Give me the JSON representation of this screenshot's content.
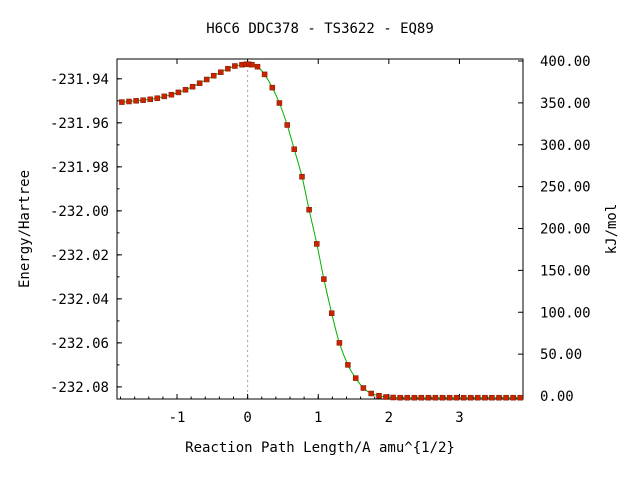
{
  "chart_data": {
    "type": "line",
    "title": "H6C6   DDC378 - TS3622 - EQ89",
    "xlabel": "Reaction Path Length/A amu^{1/2}",
    "ylabel_left": "Energy/Hartree",
    "ylabel_right": "kJ/mol",
    "xlim": [
      -1.85,
      3.9
    ],
    "ylim_left": [
      -232.0855,
      -231.931
    ],
    "ylim_right": [
      0,
      400
    ],
    "x_ticks": [
      -1,
      0,
      1,
      2,
      3
    ],
    "x_tick_labels": [
      "-1",
      "0",
      "1",
      "2",
      "3"
    ],
    "y_left_ticks": [
      -231.94,
      -231.96,
      -231.98,
      -232.0,
      -232.02,
      -232.04,
      -232.06,
      -232.08
    ],
    "y_left_tick_labels": [
      "-231.94",
      "-231.96",
      "-231.98",
      "-232.00",
      "-232.02",
      "-232.04",
      "-232.06",
      "-232.08"
    ],
    "y_right_ticks": [
      400,
      350,
      300,
      250,
      200,
      150,
      100,
      50,
      0
    ],
    "y_right_tick_labels": [
      "400.00",
      "350.00",
      "300.00",
      "250.00",
      "200.00",
      "150.00",
      "100.00",
      "50.00",
      "0.00"
    ],
    "ts_marker_x": 0,
    "grid": false,
    "series": [
      {
        "color": "#00b000",
        "marker_color": "#cc2200",
        "x": [
          -1.78,
          -1.68,
          -1.58,
          -1.48,
          -1.38,
          -1.28,
          -1.18,
          -1.08,
          -0.98,
          -0.88,
          -0.78,
          -0.68,
          -0.58,
          -0.48,
          -0.38,
          -0.28,
          -0.18,
          -0.08,
          -0.02,
          0.02,
          0.06,
          0.14,
          0.24,
          0.35,
          0.45,
          0.56,
          0.66,
          0.77,
          0.87,
          0.98,
          1.08,
          1.19,
          1.3,
          1.42,
          1.53,
          1.64,
          1.75,
          1.86,
          1.96,
          2.06,
          2.16,
          2.26,
          2.36,
          2.46,
          2.56,
          2.66,
          2.76,
          2.86,
          2.96,
          3.06,
          3.16,
          3.26,
          3.36,
          3.46,
          3.56,
          3.66,
          3.76,
          3.86
        ],
        "y": [
          -231.9506,
          -231.9503,
          -231.95,
          -231.9497,
          -231.9493,
          -231.9488,
          -231.948,
          -231.9472,
          -231.9462,
          -231.945,
          -231.9436,
          -231.942,
          -231.9403,
          -231.9386,
          -231.937,
          -231.9354,
          -231.9342,
          -231.9336,
          -231.9334,
          -231.9334,
          -231.9336,
          -231.9345,
          -231.938,
          -231.944,
          -231.951,
          -231.961,
          -231.972,
          -231.9845,
          -231.9995,
          -232.015,
          -232.031,
          -232.0465,
          -232.06,
          -232.07,
          -232.076,
          -232.0805,
          -232.083,
          -232.084,
          -232.0846,
          -232.0848,
          -232.0849,
          -232.0849,
          -232.0849,
          -232.0849,
          -232.0849,
          -232.0849,
          -232.0849,
          -232.0849,
          -232.0849,
          -232.0849,
          -232.0849,
          -232.0849,
          -232.0849,
          -232.0849,
          -232.0849,
          -232.0849,
          -232.0849,
          -232.0849
        ]
      }
    ]
  }
}
